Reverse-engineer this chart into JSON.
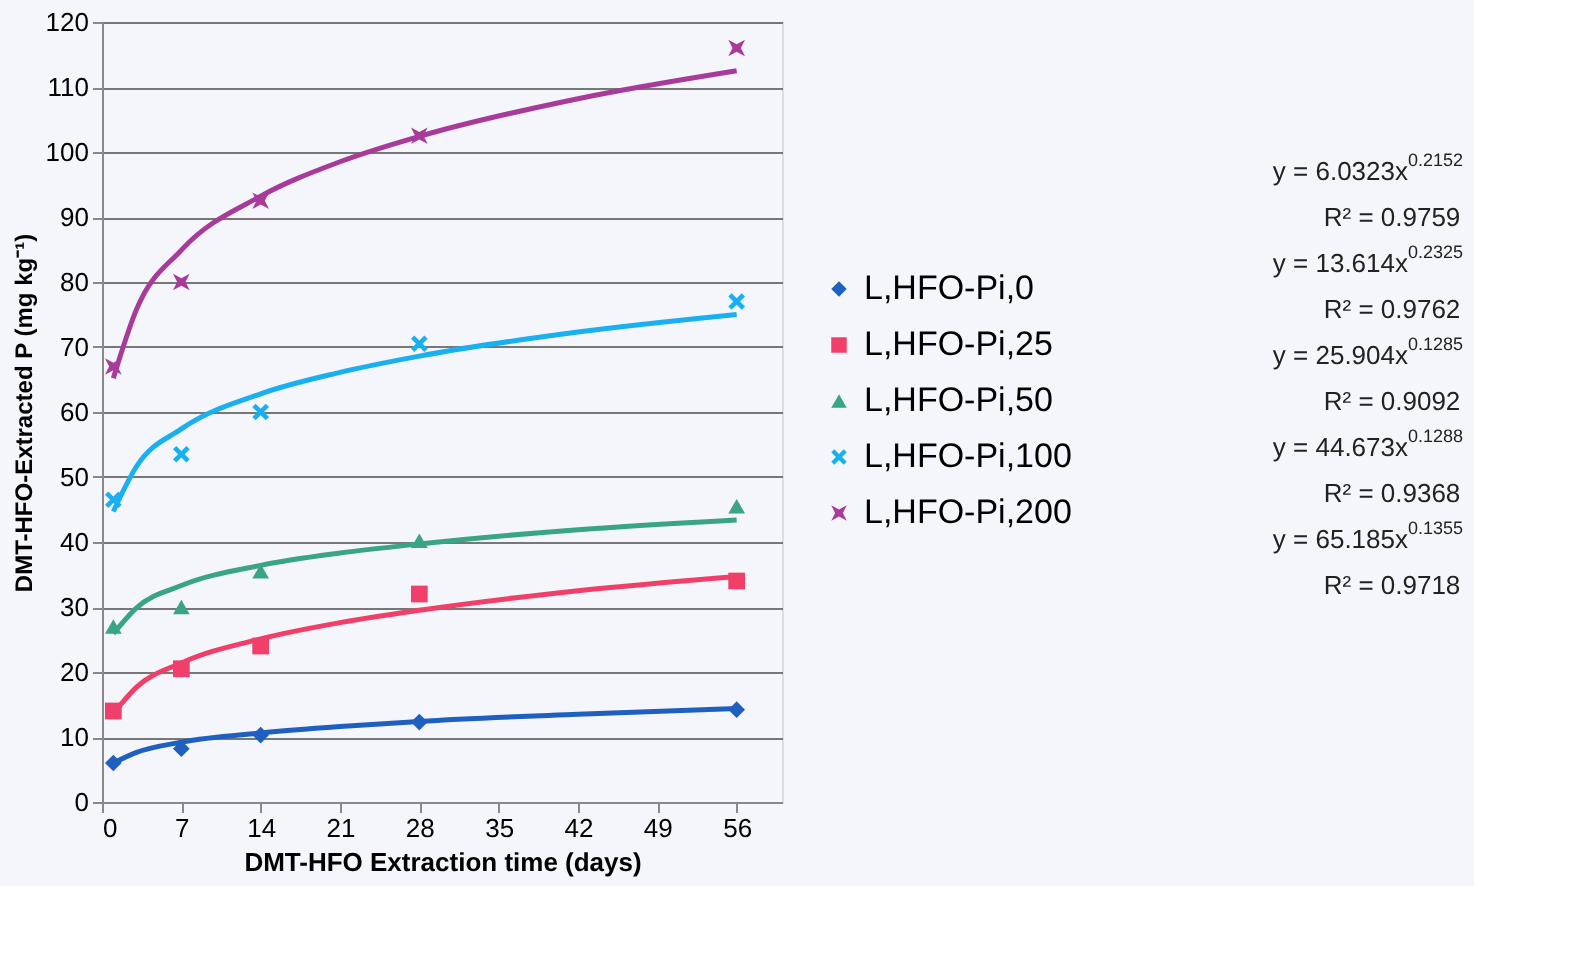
{
  "chart_data": {
    "type": "scatter",
    "xlabel": "DMT-HFO Extraction time (days)",
    "ylabel": "DMT-HFO-Extracted P (mg kg⁻¹)",
    "x": [
      1,
      7,
      14,
      28,
      56
    ],
    "series": [
      {
        "name": "L,HFO-Pi,0",
        "color": "#1f5fbf",
        "marker": "diamond",
        "values": [
          6,
          8.2,
          10.3,
          12.3,
          14.2
        ]
      },
      {
        "name": "L,HFO-Pi,25",
        "color": "#f0406a",
        "marker": "square",
        "values": [
          14,
          20.5,
          24,
          32,
          34
        ]
      },
      {
        "name": "L,HFO-Pi,50",
        "color": "#3aa584",
        "marker": "triangle",
        "values": [
          27,
          30,
          35.5,
          40.2,
          45.5
        ]
      },
      {
        "name": "L,HFO-Pi,100",
        "color": "#1ab0f0",
        "marker": "cross",
        "values": [
          46.5,
          53.5,
          60,
          70.5,
          77
        ]
      },
      {
        "name": "L,HFO-Pi,200",
        "color": "#a83a9a",
        "marker": "star",
        "values": [
          67,
          80,
          92.5,
          102.5,
          116
        ]
      },
      {
        "type": "line",
        "color": "#1f5fbf",
        "x": [
          1,
          3,
          7,
          14,
          21,
          28,
          42,
          56
        ],
        "values": [
          6.0,
          7.6,
          9.2,
          10.6,
          11.6,
          12.4,
          13.5,
          14.4
        ]
      },
      {
        "type": "line",
        "color": "#f0406a",
        "x": [
          1,
          3,
          7,
          14,
          21,
          28,
          42,
          56
        ],
        "values": [
          13.6,
          17.6,
          21.4,
          25.1,
          27.6,
          29.5,
          32.5,
          34.7
        ]
      },
      {
        "type": "line",
        "color": "#3aa584",
        "x": [
          1,
          3,
          7,
          14,
          21,
          28,
          42,
          56
        ],
        "values": [
          25.9,
          29.8,
          33.3,
          36.4,
          38.3,
          39.7,
          41.9,
          43.4
        ]
      },
      {
        "type": "line",
        "color": "#1ab0f0",
        "x": [
          1,
          3,
          7,
          14,
          21,
          28,
          42,
          56
        ],
        "values": [
          44.7,
          51.5,
          57.4,
          62.8,
          66.1,
          68.6,
          72.3,
          75.0
        ]
      },
      {
        "type": "line",
        "color": "#a83a9a",
        "x": [
          1,
          3,
          7,
          14,
          21,
          28,
          42,
          56
        ],
        "values": [
          65.2,
          75.6,
          84.9,
          93.2,
          98.5,
          102.4,
          108.2,
          112.5
        ]
      }
    ],
    "xlim": [
      0,
      60
    ],
    "xticks": [
      0,
      7,
      14,
      21,
      28,
      35,
      42,
      49,
      56
    ],
    "ylim": [
      0,
      120
    ],
    "yticks": [
      0,
      10,
      20,
      30,
      40,
      50,
      60,
      70,
      80,
      90,
      100,
      110,
      120
    ],
    "grid": "y",
    "legend": "right",
    "line_style": "solid",
    "annotations": [
      "y = 6.0323x$^{0.2152}$",
      "R² = 0.9759",
      "y = 13.614x$^{0.2325}$",
      "R² = 0.9762",
      "y = 25.904x$^{0.1285}$",
      "R² = 0.9092",
      "y = 44.673x$^{0.1288}$",
      "R² = 0.9368",
      "y = 65.185x$^{0.1355}$",
      "R² = 0.9718"
    ]
  }
}
